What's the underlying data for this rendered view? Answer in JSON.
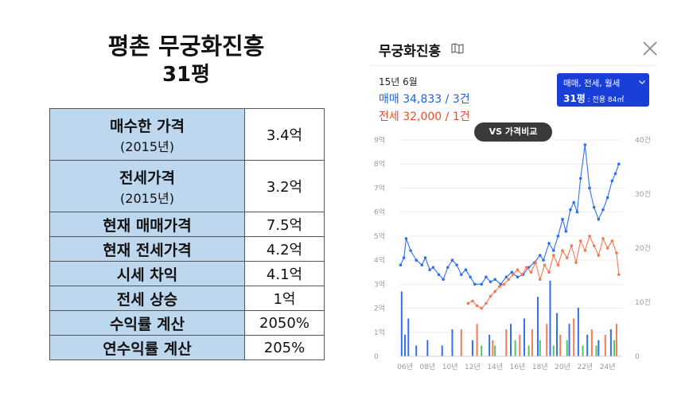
{
  "summary": {
    "title_line1": "평촌 무궁화진흥",
    "title_line2": "31평",
    "rows": [
      {
        "label": "매수한 가격",
        "sub": "(2015년)",
        "value": "3.4억"
      },
      {
        "label": "전세가격",
        "sub": "(2015년)",
        "value": "3.2억"
      },
      {
        "label": "현재 매매가격",
        "sub": "",
        "value": "7.5억"
      },
      {
        "label": "현재 전세가격",
        "sub": "",
        "value": "4.2억"
      },
      {
        "label": "시세 차익",
        "sub": "",
        "value": "4.1억"
      },
      {
        "label": "전세 상승",
        "sub": "",
        "value": "1억"
      },
      {
        "label": "수익률 계산",
        "sub": "",
        "value": "2050%"
      },
      {
        "label": "연수익률 계산",
        "sub": "",
        "value": "205%"
      }
    ]
  },
  "panel": {
    "title": "무궁화진흥",
    "period": "15년 6월",
    "sale_text": "매매 34,833 / 3건",
    "jeonse_text": "전세 32,000 / 1건",
    "dropdown_line1": "매매, 전세, 월세",
    "dropdown_size": "31평",
    "dropdown_area": " : 전용 84㎡",
    "compare_button": "VS 가격비교",
    "icons": {
      "map": "map-icon",
      "close": "close-icon",
      "chevron": "chevron-down-icon"
    },
    "colors": {
      "sale": "#2f6ff0",
      "jeonse": "#f47a55",
      "dropdown_bg": "#1a3fd9"
    }
  },
  "chart_data": {
    "type": "line",
    "x_tick_labels": [
      "06년",
      "08년",
      "10년",
      "12년",
      "14년",
      "16년",
      "18년",
      "20년",
      "22년",
      "24년"
    ],
    "x_ticks": [
      2006,
      2008,
      2010,
      2012,
      2014,
      2016,
      2018,
      2020,
      2022,
      2024
    ],
    "x_range": [
      2005.5,
      2025.3
    ],
    "y_left_range": [
      0,
      9
    ],
    "y_left_ticks": [
      0,
      1,
      2,
      3,
      4,
      5,
      6,
      7,
      8,
      9
    ],
    "y_left_tick_labels": [
      "0",
      "1억",
      "2억",
      "3억",
      "4억",
      "5억",
      "6억",
      "7억",
      "8억",
      "9억"
    ],
    "y_right_range": [
      0,
      40
    ],
    "y_right_ticks": [
      0,
      10,
      20,
      30,
      40
    ],
    "y_right_tick_labels": [
      "0",
      "10건",
      "20건",
      "30건",
      "40건"
    ],
    "grid": true,
    "series": [
      {
        "name": "매매",
        "color": "#2f6ff0",
        "x": [
          2005.6,
          2005.9,
          2006.1,
          2006.5,
          2007.0,
          2007.5,
          2007.8,
          2008.2,
          2008.5,
          2009.0,
          2009.4,
          2009.8,
          2010.2,
          2010.6,
          2011.0,
          2011.4,
          2011.8,
          2012.2,
          2012.8,
          2013.2,
          2013.6,
          2014.0,
          2014.5,
          2015.0,
          2015.5,
          2016.0,
          2016.5,
          2017.0,
          2017.5,
          2018.0,
          2018.3,
          2018.8,
          2019.2,
          2019.6,
          2020.0,
          2020.3,
          2020.7,
          2021.0,
          2021.3,
          2021.6,
          2022.0,
          2022.4,
          2022.8,
          2023.2,
          2023.6,
          2024.0,
          2024.4,
          2024.7,
          2025.0
        ],
        "y": [
          3.8,
          4.1,
          4.9,
          4.4,
          4.0,
          3.8,
          4.1,
          3.6,
          3.7,
          3.4,
          3.2,
          3.7,
          4.0,
          3.8,
          3.4,
          3.6,
          3.3,
          3.0,
          3.0,
          3.3,
          3.1,
          3.2,
          3.0,
          3.3,
          3.5,
          3.3,
          3.4,
          3.7,
          3.9,
          4.2,
          4.0,
          4.7,
          4.4,
          5.0,
          5.7,
          5.2,
          6.1,
          6.4,
          6.0,
          7.4,
          8.8,
          7.0,
          6.2,
          5.7,
          6.1,
          6.6,
          7.3,
          7.6,
          8.0
        ]
      },
      {
        "name": "전세",
        "color": "#f47a55",
        "x": [
          2011.6,
          2012.0,
          2012.4,
          2012.8,
          2013.2,
          2013.6,
          2014.0,
          2014.4,
          2014.8,
          2015.2,
          2015.6,
          2016.0,
          2016.4,
          2016.8,
          2017.2,
          2017.6,
          2018.0,
          2018.4,
          2018.8,
          2019.2,
          2019.6,
          2020.0,
          2020.4,
          2020.8,
          2021.2,
          2021.6,
          2022.0,
          2022.4,
          2022.8,
          2023.2,
          2023.6,
          2024.0,
          2024.4,
          2024.8,
          2025.0
        ],
        "y": [
          2.2,
          2.3,
          2.1,
          2.0,
          2.2,
          2.5,
          2.7,
          2.9,
          3.0,
          3.2,
          3.4,
          3.6,
          3.4,
          3.7,
          3.5,
          3.9,
          3.2,
          3.8,
          3.5,
          4.2,
          3.8,
          4.4,
          4.1,
          4.6,
          3.9,
          4.8,
          4.4,
          5.0,
          4.6,
          4.2,
          4.9,
          4.5,
          4.8,
          4.3,
          3.4
        ]
      }
    ],
    "volume_series": [
      {
        "name": "매매",
        "color": "#2f6ff0",
        "x": [
          2005.7,
          2006.0,
          2006.3,
          2007.0,
          2008.0,
          2009.3,
          2010.2,
          2012.0,
          2013.5,
          2015.4,
          2016.6,
          2017.8,
          2018.9,
          2019.5,
          2020.6,
          2021.4,
          2022.2,
          2023.2,
          2024.3
        ],
        "values": [
          12,
          4,
          7,
          2,
          3,
          2,
          5,
          3,
          4,
          6,
          7,
          11,
          14,
          8,
          6,
          9,
          4,
          3,
          5
        ]
      },
      {
        "name": "전세",
        "color": "#f47a55",
        "x": [
          2011.0,
          2012.4,
          2013.8,
          2015.0,
          2016.2,
          2017.3,
          2018.6,
          2019.8,
          2021.0,
          2022.6,
          2023.8,
          2024.8
        ],
        "values": [
          5,
          6,
          3,
          5,
          4,
          5,
          6,
          4,
          7,
          5,
          4,
          6
        ]
      },
      {
        "name": "월세",
        "color": "#52c468",
        "x": [
          2012.8,
          2014.0,
          2015.8,
          2017.0,
          2018.0,
          2019.2,
          2020.4,
          2021.8,
          2023.0,
          2024.6
        ],
        "values": [
          2,
          2,
          3,
          2,
          3,
          2,
          3,
          2,
          2,
          3
        ]
      }
    ]
  }
}
